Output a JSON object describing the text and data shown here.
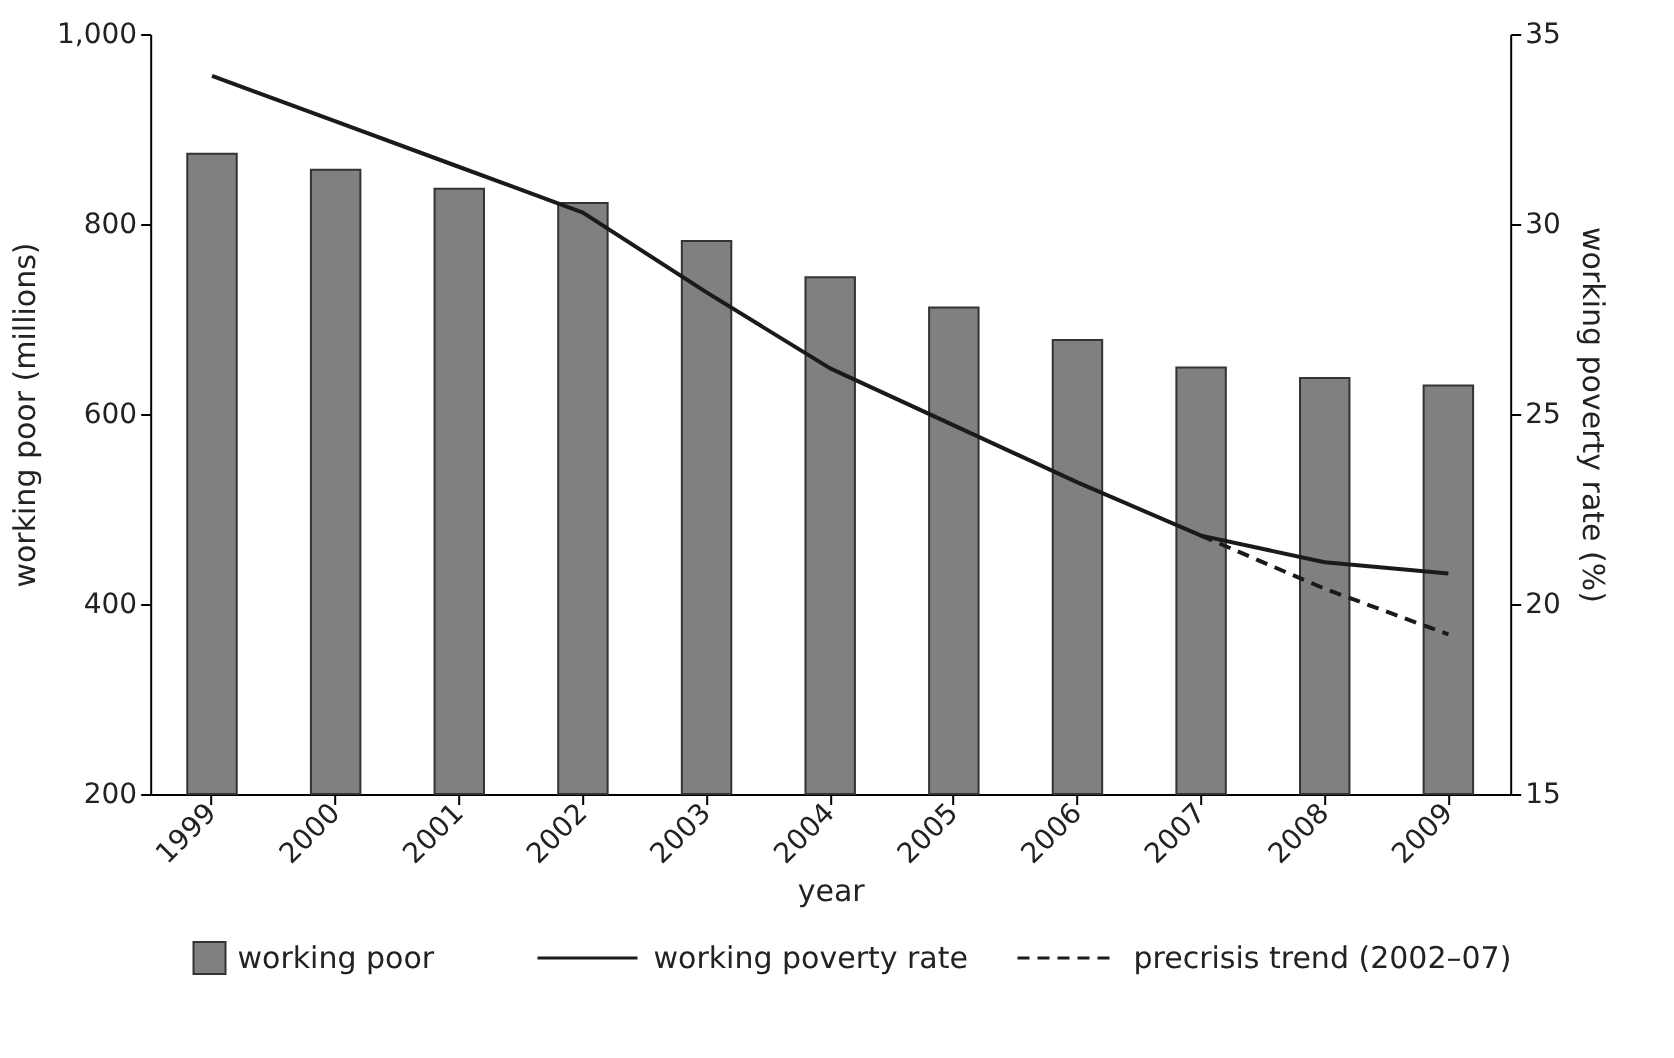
{
  "chart_data": {
    "type": "bar",
    "xlabel": "year",
    "ylabel": "working poor (millions)",
    "y2label": "working poverty rate (%)",
    "categories": [
      "1999",
      "2000",
      "2001",
      "2002",
      "2003",
      "2004",
      "2005",
      "2006",
      "2007",
      "2008",
      "2009"
    ],
    "series": [
      {
        "name": "working poor",
        "color": "#808080",
        "values": [
          874,
          857,
          837,
          822,
          782,
          744,
          712,
          678,
          649,
          638,
          630
        ]
      },
      {
        "name": "working poverty rate",
        "type": "line",
        "axis": "y2",
        "color": "#1a1a1a",
        "line_style": "solid",
        "values": [
          33.9,
          32.7,
          31.5,
          30.3,
          28.2,
          26.2,
          24.7,
          23.2,
          21.8,
          21.1,
          20.8
        ]
      },
      {
        "name": "precrisis trend (2002–07)",
        "type": "line",
        "axis": "y2",
        "color": "#1a1a1a",
        "line_style": "dashed",
        "values": [
          null,
          null,
          null,
          null,
          null,
          null,
          null,
          null,
          21.8,
          20.4,
          19.2
        ]
      }
    ],
    "ylim": [
      200,
      1000
    ],
    "yticks": [
      200,
      400,
      600,
      800,
      {
        "value": 1000,
        "label": "1,000"
      }
    ],
    "y2lim": [
      15,
      35
    ],
    "y2ticks": [
      15,
      20,
      25,
      30,
      35
    ],
    "grid": false,
    "legend": "bottom",
    "marker": "none"
  }
}
